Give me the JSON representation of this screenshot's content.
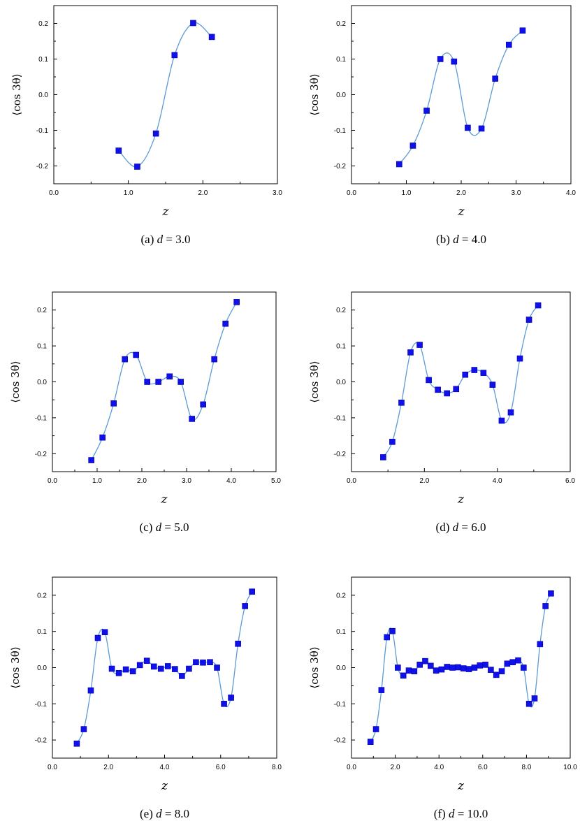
{
  "chart_data": [
    {
      "type": "scatter",
      "caption": "(a) d = 3.0",
      "caption_prefix": "(a)",
      "caption_value": "= 3.0",
      "xlabel": "z",
      "ylabel": "⟨cos 3θ⟩",
      "xlim": [
        0,
        3
      ],
      "ylim": [
        -0.25,
        0.25
      ],
      "xticks": [
        "0.0",
        "1.0",
        "2.0",
        "3.0"
      ],
      "yticks": [
        "-0.2",
        "-0.1",
        "0.0",
        "0.1",
        "0.2"
      ],
      "x": [
        0.87,
        1.12,
        1.37,
        1.62,
        1.87,
        2.12
      ],
      "y": [
        -0.157,
        -0.202,
        -0.109,
        0.111,
        0.201,
        0.162
      ]
    },
    {
      "type": "scatter",
      "caption": "(b) d = 4.0",
      "caption_prefix": "(b)",
      "caption_value": "= 4.0",
      "xlabel": "z",
      "ylabel": "⟨cos 3θ⟩",
      "xlim": [
        0,
        4
      ],
      "ylim": [
        -0.25,
        0.25
      ],
      "xticks": [
        "0.0",
        "1.0",
        "2.0",
        "3.0",
        "4.0"
      ],
      "yticks": [
        "-0.2",
        "-0.1",
        "0.0",
        "0.1",
        "0.2"
      ],
      "x": [
        0.87,
        1.12,
        1.37,
        1.62,
        1.87,
        2.12,
        2.37,
        2.62,
        2.87,
        3.12
      ],
      "y": [
        -0.195,
        -0.143,
        -0.045,
        0.1,
        0.093,
        -0.093,
        -0.095,
        0.045,
        0.14,
        0.18
      ]
    },
    {
      "type": "scatter",
      "caption": "(c) d = 5.0",
      "caption_prefix": "(c)",
      "caption_value": "= 5.0",
      "xlabel": "z",
      "ylabel": "⟨cos 3θ⟩",
      "xlim": [
        0,
        5
      ],
      "ylim": [
        -0.25,
        0.25
      ],
      "xticks": [
        "0.0",
        "1.0",
        "2.0",
        "3.0",
        "4.0",
        "5.0"
      ],
      "yticks": [
        "-0.2",
        "-0.1",
        "0.0",
        "0.1",
        "0.2"
      ],
      "x": [
        0.87,
        1.12,
        1.37,
        1.62,
        1.87,
        2.12,
        2.37,
        2.62,
        2.87,
        3.12,
        3.37,
        3.62,
        3.87,
        4.12
      ],
      "y": [
        -0.218,
        -0.155,
        -0.06,
        0.063,
        0.075,
        0.0,
        0.0,
        0.015,
        0.0,
        -0.103,
        -0.063,
        0.063,
        0.162,
        0.222
      ]
    },
    {
      "type": "scatter",
      "caption": "(d) d = 6.0",
      "caption_prefix": "(d)",
      "caption_value": "= 6.0",
      "xlabel": "z",
      "ylabel": "⟨cos 3θ⟩",
      "xlim": [
        0,
        6
      ],
      "ylim": [
        -0.25,
        0.25
      ],
      "xticks": [
        "0.0",
        "2.0",
        "4.0",
        "6.0"
      ],
      "yticks": [
        "-0.2",
        "-0.1",
        "0.0",
        "0.1",
        "0.2"
      ],
      "x": [
        0.87,
        1.12,
        1.37,
        1.62,
        1.87,
        2.12,
        2.37,
        2.62,
        2.87,
        3.12,
        3.37,
        3.62,
        3.87,
        4.12,
        4.37,
        4.62,
        4.87,
        5.12
      ],
      "y": [
        -0.21,
        -0.167,
        -0.058,
        0.082,
        0.103,
        0.005,
        -0.022,
        -0.032,
        -0.02,
        0.02,
        0.033,
        0.025,
        -0.008,
        -0.108,
        -0.085,
        0.065,
        0.173,
        0.213
      ]
    },
    {
      "type": "scatter",
      "caption": "(e) d = 8.0",
      "caption_prefix": "(e)",
      "caption_value": "= 8.0",
      "xlabel": "z",
      "ylabel": "⟨cos 3θ⟩",
      "xlim": [
        0,
        8
      ],
      "ylim": [
        -0.25,
        0.25
      ],
      "xticks": [
        "0.0",
        "2.0",
        "4.0",
        "6.0",
        "8.0"
      ],
      "yticks": [
        "-0.2",
        "-0.1",
        "0.0",
        "0.1",
        "0.2"
      ],
      "x": [
        0.87,
        1.12,
        1.37,
        1.62,
        1.87,
        2.12,
        2.37,
        2.62,
        2.87,
        3.12,
        3.37,
        3.62,
        3.87,
        4.12,
        4.37,
        4.62,
        4.87,
        5.12,
        5.37,
        5.62,
        5.87,
        6.12,
        6.37,
        6.62,
        6.87,
        7.12
      ],
      "y": [
        -0.21,
        -0.17,
        -0.063,
        0.082,
        0.098,
        -0.003,
        -0.015,
        -0.005,
        -0.01,
        0.007,
        0.019,
        0.003,
        -0.003,
        0.004,
        -0.004,
        -0.023,
        -0.003,
        0.015,
        0.014,
        0.015,
        0.0,
        -0.1,
        -0.083,
        0.066,
        0.17,
        0.21
      ]
    },
    {
      "type": "scatter",
      "caption": "(f) d = 10.0",
      "caption_prefix": "(f)",
      "caption_value": "= 10.0",
      "xlabel": "z",
      "ylabel": "⟨cos 3θ⟩",
      "xlim": [
        0,
        10
      ],
      "ylim": [
        -0.25,
        0.25
      ],
      "xticks": [
        "0.0",
        "2.0",
        "4.0",
        "6.0",
        "8.0",
        "10.0"
      ],
      "yticks": [
        "-0.2",
        "-0.1",
        "0.0",
        "0.1",
        "0.2"
      ],
      "x": [
        0.87,
        1.12,
        1.37,
        1.62,
        1.87,
        2.12,
        2.37,
        2.62,
        2.87,
        3.12,
        3.37,
        3.62,
        3.87,
        4.12,
        4.37,
        4.62,
        4.87,
        5.12,
        5.37,
        5.62,
        5.87,
        6.12,
        6.37,
        6.62,
        6.87,
        7.12,
        7.37,
        7.62,
        7.87,
        8.12,
        8.37,
        8.62,
        8.87,
        9.12
      ],
      "y": [
        -0.205,
        -0.17,
        -0.062,
        0.084,
        0.101,
        0.0,
        -0.022,
        -0.008,
        -0.01,
        0.008,
        0.018,
        0.005,
        -0.008,
        -0.005,
        0.002,
        0.0,
        0.001,
        -0.002,
        -0.004,
        0.0,
        0.006,
        0.008,
        -0.006,
        -0.02,
        -0.01,
        0.011,
        0.015,
        0.02,
        0.0,
        -0.1,
        -0.085,
        0.065,
        0.17,
        0.205
      ]
    }
  ]
}
